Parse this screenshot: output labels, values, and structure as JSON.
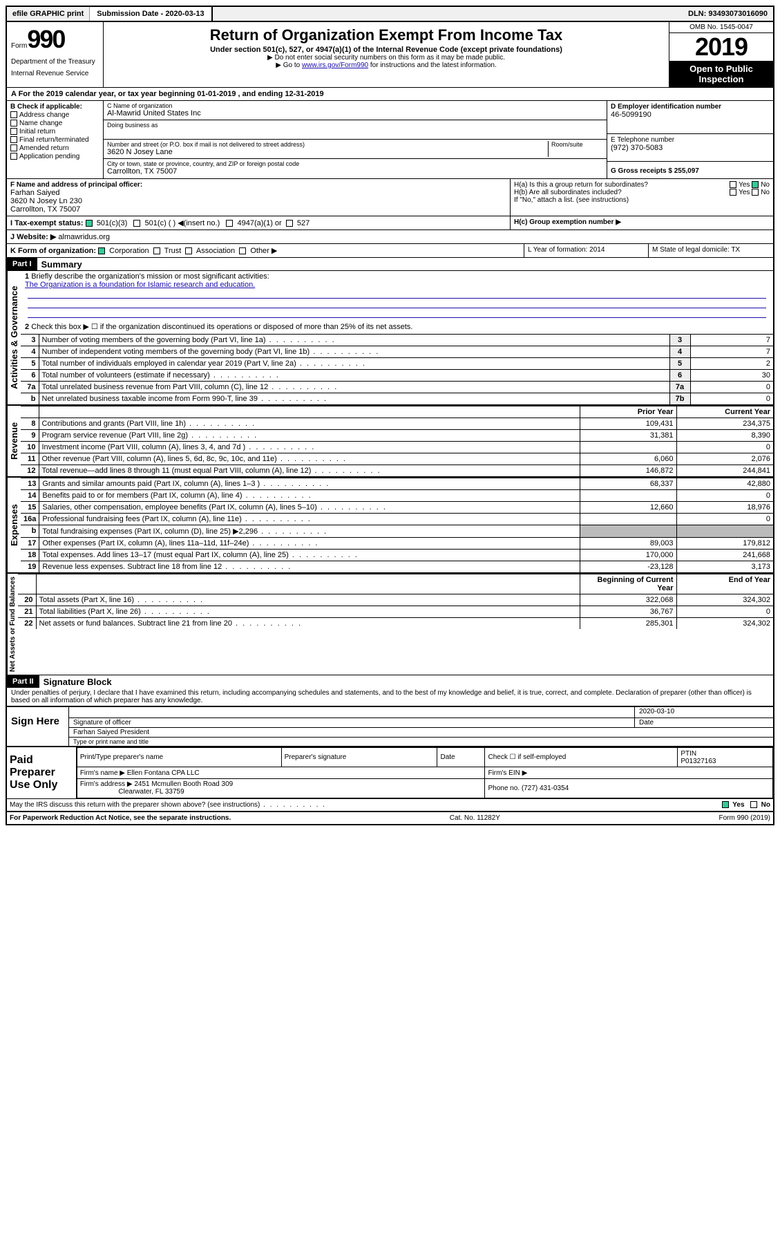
{
  "topbar": {
    "efile": "efile GRAPHIC print",
    "sub_label": "Submission Date - 2020-03-13",
    "dln": "DLN: 93493073016090"
  },
  "header": {
    "form_word": "Form",
    "form_num": "990",
    "dept1": "Department of the Treasury",
    "dept2": "Internal Revenue Service",
    "title": "Return of Organization Exempt From Income Tax",
    "sub1": "Under section 501(c), 527, or 4947(a)(1) of the Internal Revenue Code (except private foundations)",
    "sub2": "▶ Do not enter social security numbers on this form as it may be made public.",
    "sub3_pre": "▶ Go to ",
    "sub3_link": "www.irs.gov/Form990",
    "sub3_post": " for instructions and the latest information.",
    "omb": "OMB No. 1545-0047",
    "year": "2019",
    "open": "Open to Public Inspection"
  },
  "period": "A For the 2019 calendar year, or tax year beginning 01-01-2019   , and ending 12-31-2019",
  "checkB": {
    "label": "B Check if applicable:",
    "opts": [
      "Address change",
      "Name change",
      "Initial return",
      "Final return/terminated",
      "Amended return",
      "Application pending"
    ]
  },
  "orgname": {
    "c_label": "C Name of organization",
    "c_value": "Al-Mawrid United States Inc",
    "dba_label": "Doing business as",
    "addr_label": "Number and street (or P.O. box if mail is not delivered to street address)",
    "room_label": "Room/suite",
    "addr_value": "3620 N Josey Lane",
    "city_label": "City or town, state or province, country, and ZIP or foreign postal code",
    "city_value": "Carrollton, TX  75007"
  },
  "ein": {
    "d_label": "D Employer identification number",
    "d_value": "46-5099190",
    "e_label": "E Telephone number",
    "e_value": "(972) 370-5083",
    "g_label": "G Gross receipts $ 255,097"
  },
  "officer": {
    "f_label": "F Name and address of principal officer:",
    "name": "Farhan Saiyed",
    "addr1": "3620 N Josey Ln 230",
    "addr2": "Carrollton, TX  75007"
  },
  "groupH": {
    "ha": "H(a)  Is this a group return for subordinates?",
    "hb": "H(b)  Are all subordinates included?",
    "hb_note": "If \"No,\" attach a list. (see instructions)",
    "hc": "H(c)  Group exemption number ▶",
    "yes": "Yes",
    "no": "No"
  },
  "taxexempt": {
    "i_label": "I   Tax-exempt status:",
    "c3": "501(c)(3)",
    "c": "501(c) (  ) ◀(insert no.)",
    "a1": "4947(a)(1) or",
    "s527": "527"
  },
  "website": {
    "j_label": "J   Website: ▶",
    "value": "almawridus.org"
  },
  "korg": {
    "k_label": "K Form of organization:",
    "corp": "Corporation",
    "trust": "Trust",
    "assoc": "Association",
    "other": "Other ▶",
    "l_label": "L Year of formation: 2014",
    "m_label": "M State of legal domicile: TX"
  },
  "part1": {
    "hdr": "Part I",
    "title": "Summary",
    "q1": "Briefly describe the organization's mission or most significant activities:",
    "mission": "The Organization is a foundation for Islamic research and education.",
    "q2": "Check this box ▶ ☐  if the organization discontinued its operations or disposed of more than 25% of its net assets.",
    "rows": [
      {
        "n": "3",
        "t": "Number of voting members of the governing body (Part VI, line 1a)",
        "box": "3",
        "v": "7"
      },
      {
        "n": "4",
        "t": "Number of independent voting members of the governing body (Part VI, line 1b)",
        "box": "4",
        "v": "7"
      },
      {
        "n": "5",
        "t": "Total number of individuals employed in calendar year 2019 (Part V, line 2a)",
        "box": "5",
        "v": "2"
      },
      {
        "n": "6",
        "t": "Total number of volunteers (estimate if necessary)",
        "box": "6",
        "v": "30"
      },
      {
        "n": "7a",
        "t": "Total unrelated business revenue from Part VIII, column (C), line 12",
        "box": "7a",
        "v": "0"
      },
      {
        "n": "b",
        "t": "Net unrelated business taxable income from Form 990-T, line 39",
        "box": "7b",
        "v": "0"
      }
    ],
    "col_prior": "Prior Year",
    "col_curr": "Current Year",
    "revenue": [
      {
        "n": "8",
        "t": "Contributions and grants (Part VIII, line 1h)",
        "p": "109,431",
        "c": "234,375"
      },
      {
        "n": "9",
        "t": "Program service revenue (Part VIII, line 2g)",
        "p": "31,381",
        "c": "8,390"
      },
      {
        "n": "10",
        "t": "Investment income (Part VIII, column (A), lines 3, 4, and 7d )",
        "p": "",
        "c": "0"
      },
      {
        "n": "11",
        "t": "Other revenue (Part VIII, column (A), lines 5, 6d, 8c, 9c, 10c, and 11e)",
        "p": "6,060",
        "c": "2,076"
      },
      {
        "n": "12",
        "t": "Total revenue—add lines 8 through 11 (must equal Part VIII, column (A), line 12)",
        "p": "146,872",
        "c": "244,841"
      }
    ],
    "expenses": [
      {
        "n": "13",
        "t": "Grants and similar amounts paid (Part IX, column (A), lines 1–3 )",
        "p": "68,337",
        "c": "42,880"
      },
      {
        "n": "14",
        "t": "Benefits paid to or for members (Part IX, column (A), line 4)",
        "p": "",
        "c": "0"
      },
      {
        "n": "15",
        "t": "Salaries, other compensation, employee benefits (Part IX, column (A), lines 5–10)",
        "p": "12,660",
        "c": "18,976"
      },
      {
        "n": "16a",
        "t": "Professional fundraising fees (Part IX, column (A), line 11e)",
        "p": "",
        "c": "0"
      },
      {
        "n": "b",
        "t": "Total fundraising expenses (Part IX, column (D), line 25) ▶2,296",
        "p": "grey",
        "c": "grey"
      },
      {
        "n": "17",
        "t": "Other expenses (Part IX, column (A), lines 11a–11d, 11f–24e)",
        "p": "89,003",
        "c": "179,812"
      },
      {
        "n": "18",
        "t": "Total expenses. Add lines 13–17 (must equal Part IX, column (A), line 25)",
        "p": "170,000",
        "c": "241,668"
      },
      {
        "n": "19",
        "t": "Revenue less expenses. Subtract line 18 from line 12",
        "p": "-23,128",
        "c": "3,173"
      }
    ],
    "col_begin": "Beginning of Current Year",
    "col_end": "End of Year",
    "netassets": [
      {
        "n": "20",
        "t": "Total assets (Part X, line 16)",
        "p": "322,068",
        "c": "324,302"
      },
      {
        "n": "21",
        "t": "Total liabilities (Part X, line 26)",
        "p": "36,767",
        "c": "0"
      },
      {
        "n": "22",
        "t": "Net assets or fund balances. Subtract line 21 from line 20",
        "p": "285,301",
        "c": "324,302"
      }
    ],
    "vert_gov": "Activities & Governance",
    "vert_rev": "Revenue",
    "vert_exp": "Expenses",
    "vert_net": "Net Assets or Fund Balances"
  },
  "part2": {
    "hdr": "Part II",
    "title": "Signature Block",
    "decl": "Under penalties of perjury, I declare that I have examined this return, including accompanying schedules and statements, and to the best of my knowledge and belief, it is true, correct, and complete. Declaration of preparer (other than officer) is based on all information of which preparer has any knowledge.",
    "sign_here": "Sign Here",
    "sig_officer": "Signature of officer",
    "sig_date": "2020-03-10",
    "date_lbl": "Date",
    "typed": "Farhan Saiyed  President",
    "typed_lbl": "Type or print name and title"
  },
  "paid": {
    "title": "Paid Preparer Use Only",
    "h1": "Print/Type preparer's name",
    "h2": "Preparer's signature",
    "h3": "Date",
    "h4": "Check ☐ if self-employed",
    "h5": "PTIN",
    "ptin": "P01327163",
    "firm_name_lbl": "Firm's name    ▶",
    "firm_name": "Ellen Fontana CPA LLC",
    "firm_ein_lbl": "Firm's EIN ▶",
    "firm_addr_lbl": "Firm's address ▶",
    "firm_addr": "2451 Mcmullen Booth Road 309",
    "firm_city": "Clearwater, FL  33759",
    "phone_lbl": "Phone no. (727) 431-0354"
  },
  "footer": {
    "discuss": "May the IRS discuss this return with the preparer shown above? (see instructions)",
    "yes": "Yes",
    "no": "No",
    "pra": "For Paperwork Reduction Act Notice, see the separate instructions.",
    "cat": "Cat. No. 11282Y",
    "form": "Form 990 (2019)"
  }
}
